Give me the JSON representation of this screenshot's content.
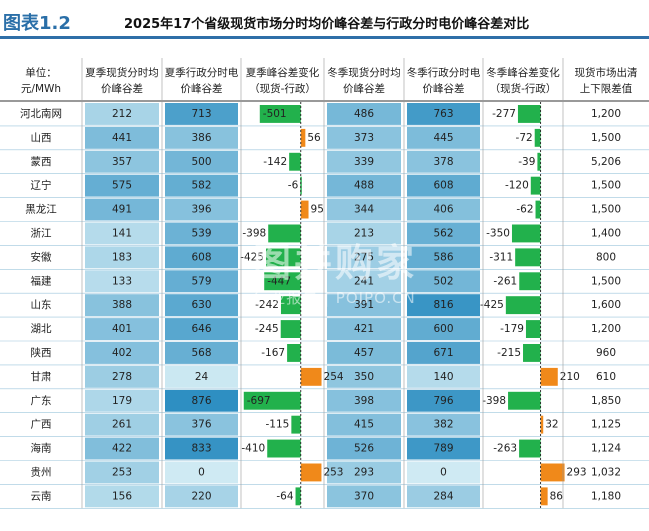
{
  "header": {
    "figure_label": "图表1.2",
    "title": "2025年17个省级现货市场分时均价峰谷差与行政分时电价峰谷差对比"
  },
  "watermark": {
    "brand": "图并购家",
    "sub": "行业报告 | POIPO.CN"
  },
  "colors": {
    "heat_low": "#cfeaf3",
    "heat_high": "#2e8fc2",
    "bar_negative": "#22b14c",
    "bar_positive": "#f0891a",
    "row_divider": "#9cc6dc"
  },
  "chart_data": {
    "type": "table",
    "title": "2025年17个省级现货市场分时均价峰谷差与行政分时电价峰谷差对比",
    "columns": [
      "单位：元/MWh",
      "夏季现货分时均价峰谷差",
      "夏季行政分时电价峰谷差",
      "夏季峰谷差变化（现货-行政）",
      "冬季现货分时均价峰谷差",
      "冬季行政分时电价峰谷差",
      "冬季峰谷差变化（现货-行政）",
      "现货市场出清上下限差值"
    ],
    "header_lines": [
      [
        "单位：",
        "元/MWh"
      ],
      [
        "夏季现货分时均",
        "价峰谷差"
      ],
      [
        "夏季行政分时电",
        "价峰谷差"
      ],
      [
        "夏季峰谷差变化",
        "（现货-行政）"
      ],
      [
        "冬季现货分时均",
        "价峰谷差"
      ],
      [
        "冬季行政分时电",
        "价峰谷差"
      ],
      [
        "冬季峰谷差变化",
        "（现货-行政）"
      ],
      [
        "现货市场出清",
        "上下限差值"
      ]
    ],
    "rows": [
      {
        "region": "河北南网",
        "summer_spot": 212,
        "summer_admin": 713,
        "summer_diff": -501,
        "winter_spot": 486,
        "winter_admin": 763,
        "winter_diff": -277,
        "clearing_limit_diff": "1,200"
      },
      {
        "region": "山西",
        "summer_spot": 441,
        "summer_admin": 386,
        "summer_diff": 56,
        "winter_spot": 373,
        "winter_admin": 445,
        "winter_diff": -72,
        "clearing_limit_diff": "1,500"
      },
      {
        "region": "蒙西",
        "summer_spot": 357,
        "summer_admin": 500,
        "summer_diff": -142,
        "winter_spot": 339,
        "winter_admin": 378,
        "winter_diff": -39,
        "clearing_limit_diff": "5,206"
      },
      {
        "region": "辽宁",
        "summer_spot": 575,
        "summer_admin": 582,
        "summer_diff": -6,
        "winter_spot": 488,
        "winter_admin": 608,
        "winter_diff": -120,
        "clearing_limit_diff": "1,500"
      },
      {
        "region": "黑龙江",
        "summer_spot": 491,
        "summer_admin": 396,
        "summer_diff": 95,
        "winter_spot": 344,
        "winter_admin": 406,
        "winter_diff": -62,
        "clearing_limit_diff": "1,500"
      },
      {
        "region": "浙江",
        "summer_spot": 141,
        "summer_admin": 539,
        "summer_diff": -398,
        "winter_spot": 213,
        "winter_admin": 562,
        "winter_diff": -350,
        "clearing_limit_diff": "1,400"
      },
      {
        "region": "安徽",
        "summer_spot": 183,
        "summer_admin": 608,
        "summer_diff": -425,
        "winter_spot": 275,
        "winter_admin": 586,
        "winter_diff": -311,
        "clearing_limit_diff": "800"
      },
      {
        "region": "福建",
        "summer_spot": 133,
        "summer_admin": 579,
        "summer_diff": -447,
        "winter_spot": 241,
        "winter_admin": 502,
        "winter_diff": -261,
        "clearing_limit_diff": "1,500"
      },
      {
        "region": "山东",
        "summer_spot": 388,
        "summer_admin": 630,
        "summer_diff": -242,
        "winter_spot": 391,
        "winter_admin": 816,
        "winter_diff": -425,
        "clearing_limit_diff": "1,600"
      },
      {
        "region": "湖北",
        "summer_spot": 401,
        "summer_admin": 646,
        "summer_diff": -245,
        "winter_spot": 421,
        "winter_admin": 600,
        "winter_diff": -179,
        "clearing_limit_diff": "1,200"
      },
      {
        "region": "陕西",
        "summer_spot": 402,
        "summer_admin": 568,
        "summer_diff": -167,
        "winter_spot": 457,
        "winter_admin": 671,
        "winter_diff": -215,
        "clearing_limit_diff": "960"
      },
      {
        "region": "甘肃",
        "summer_spot": 278,
        "summer_admin": 24,
        "summer_diff": 254,
        "winter_spot": 350,
        "winter_admin": 140,
        "winter_diff": 210,
        "clearing_limit_diff": "610"
      },
      {
        "region": "广东",
        "summer_spot": 179,
        "summer_admin": 876,
        "summer_diff": -697,
        "winter_spot": 398,
        "winter_admin": 796,
        "winter_diff": -398,
        "clearing_limit_diff": "1,850"
      },
      {
        "region": "广西",
        "summer_spot": 261,
        "summer_admin": 376,
        "summer_diff": -115,
        "winter_spot": 415,
        "winter_admin": 382,
        "winter_diff": 32,
        "clearing_limit_diff": "1,125"
      },
      {
        "region": "海南",
        "summer_spot": 422,
        "summer_admin": 833,
        "summer_diff": -410,
        "winter_spot": 526,
        "winter_admin": 789,
        "winter_diff": -263,
        "clearing_limit_diff": "1,124"
      },
      {
        "region": "贵州",
        "summer_spot": 253,
        "summer_admin": 0,
        "summer_diff": 253,
        "winter_spot": 293,
        "winter_admin": 0,
        "winter_diff": 293,
        "clearing_limit_diff": "1,032"
      },
      {
        "region": "云南",
        "summer_spot": 156,
        "summer_admin": 220,
        "summer_diff": -64,
        "winter_spot": 370,
        "winter_admin": 284,
        "winter_diff": 86,
        "clearing_limit_diff": "1,180"
      }
    ]
  }
}
